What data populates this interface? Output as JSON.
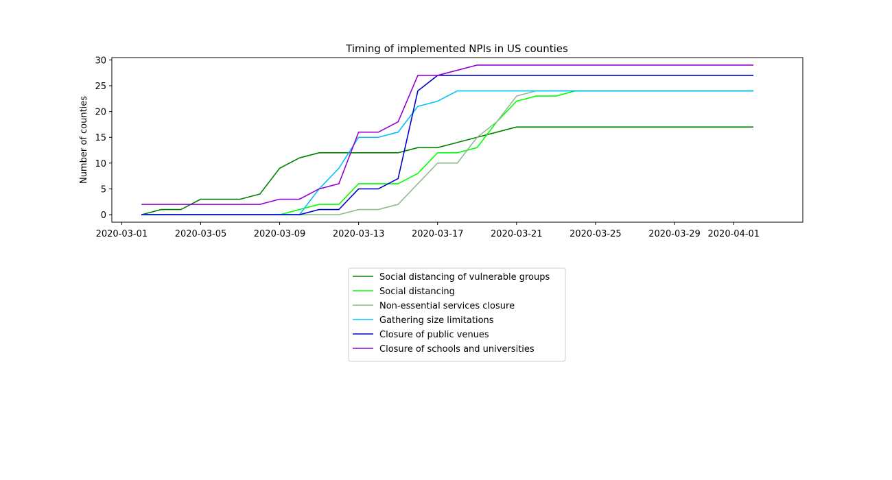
{
  "chart_data": {
    "type": "line",
    "title": "Timing of implemented NPIs in US counties",
    "xlabel": "",
    "ylabel": "Number of counties",
    "x": [
      "2020-03-02",
      "2020-03-03",
      "2020-03-04",
      "2020-03-05",
      "2020-03-06",
      "2020-03-07",
      "2020-03-08",
      "2020-03-09",
      "2020-03-10",
      "2020-03-11",
      "2020-03-12",
      "2020-03-13",
      "2020-03-14",
      "2020-03-15",
      "2020-03-16",
      "2020-03-17",
      "2020-03-18",
      "2020-03-19",
      "2020-03-20",
      "2020-03-21",
      "2020-03-22",
      "2020-03-23",
      "2020-03-24",
      "2020-03-25",
      "2020-03-26",
      "2020-03-27",
      "2020-03-28",
      "2020-03-29",
      "2020-03-30",
      "2020-03-31",
      "2020-04-01",
      "2020-04-02"
    ],
    "xlim": [
      "2020-02-29T12:00",
      "2020-04-04T12:00"
    ],
    "ylim": [
      -1.45,
      30.45
    ],
    "x_ticks": [
      "2020-03-01",
      "2020-03-05",
      "2020-03-09",
      "2020-03-13",
      "2020-03-17",
      "2020-03-21",
      "2020-03-25",
      "2020-03-29",
      "2020-04-01"
    ],
    "y_ticks": [
      0,
      5,
      10,
      15,
      20,
      25,
      30
    ],
    "grid": false,
    "legend_position": "below",
    "series": [
      {
        "name": "Social distancing of vulnerable groups",
        "color": "#008000",
        "values": [
          0,
          1,
          1,
          3,
          3,
          3,
          4,
          9,
          11,
          12,
          12,
          12,
          12,
          12,
          13,
          13,
          14,
          15,
          16,
          17,
          17,
          17,
          17,
          17,
          17,
          17,
          17,
          17,
          17,
          17,
          17,
          17
        ]
      },
      {
        "name": "Social distancing",
        "color": "#00ff00",
        "values": [
          0,
          0,
          0,
          0,
          0,
          0,
          0,
          0,
          1,
          2,
          2,
          6,
          6,
          6,
          8,
          12,
          12,
          13,
          18,
          22,
          23,
          23,
          24,
          24,
          24,
          24,
          24,
          24,
          24,
          24,
          24,
          24
        ]
      },
      {
        "name": "Non-essential services closure",
        "color": "#8fbc8f",
        "values": [
          0,
          0,
          0,
          0,
          0,
          0,
          0,
          0,
          0,
          0,
          0,
          1,
          1,
          2,
          6,
          10,
          10,
          15,
          18,
          23,
          24,
          24,
          24,
          24,
          24,
          24,
          24,
          24,
          24,
          24,
          24,
          24
        ]
      },
      {
        "name": "Gathering size limitations",
        "color": "#00bfff",
        "values": [
          0,
          0,
          0,
          0,
          0,
          0,
          0,
          0,
          0,
          5,
          9,
          15,
          15,
          16,
          21,
          22,
          24,
          24,
          24,
          24,
          24,
          24,
          24,
          24,
          24,
          24,
          24,
          24,
          24,
          24,
          24,
          24
        ]
      },
      {
        "name": "Closure of public venues",
        "color": "#0000cd",
        "values": [
          0,
          0,
          0,
          0,
          0,
          0,
          0,
          0,
          0,
          1,
          1,
          5,
          5,
          7,
          24,
          27,
          27,
          27,
          27,
          27,
          27,
          27,
          27,
          27,
          27,
          27,
          27,
          27,
          27,
          27,
          27,
          27
        ]
      },
      {
        "name": "Closure of schools and universities",
        "color": "#9400d3",
        "values": [
          2,
          2,
          2,
          2,
          2,
          2,
          2,
          3,
          3,
          5,
          6,
          16,
          16,
          18,
          27,
          27,
          28,
          29,
          29,
          29,
          29,
          29,
          29,
          29,
          29,
          29,
          29,
          29,
          29,
          29,
          29,
          29
        ]
      }
    ]
  }
}
